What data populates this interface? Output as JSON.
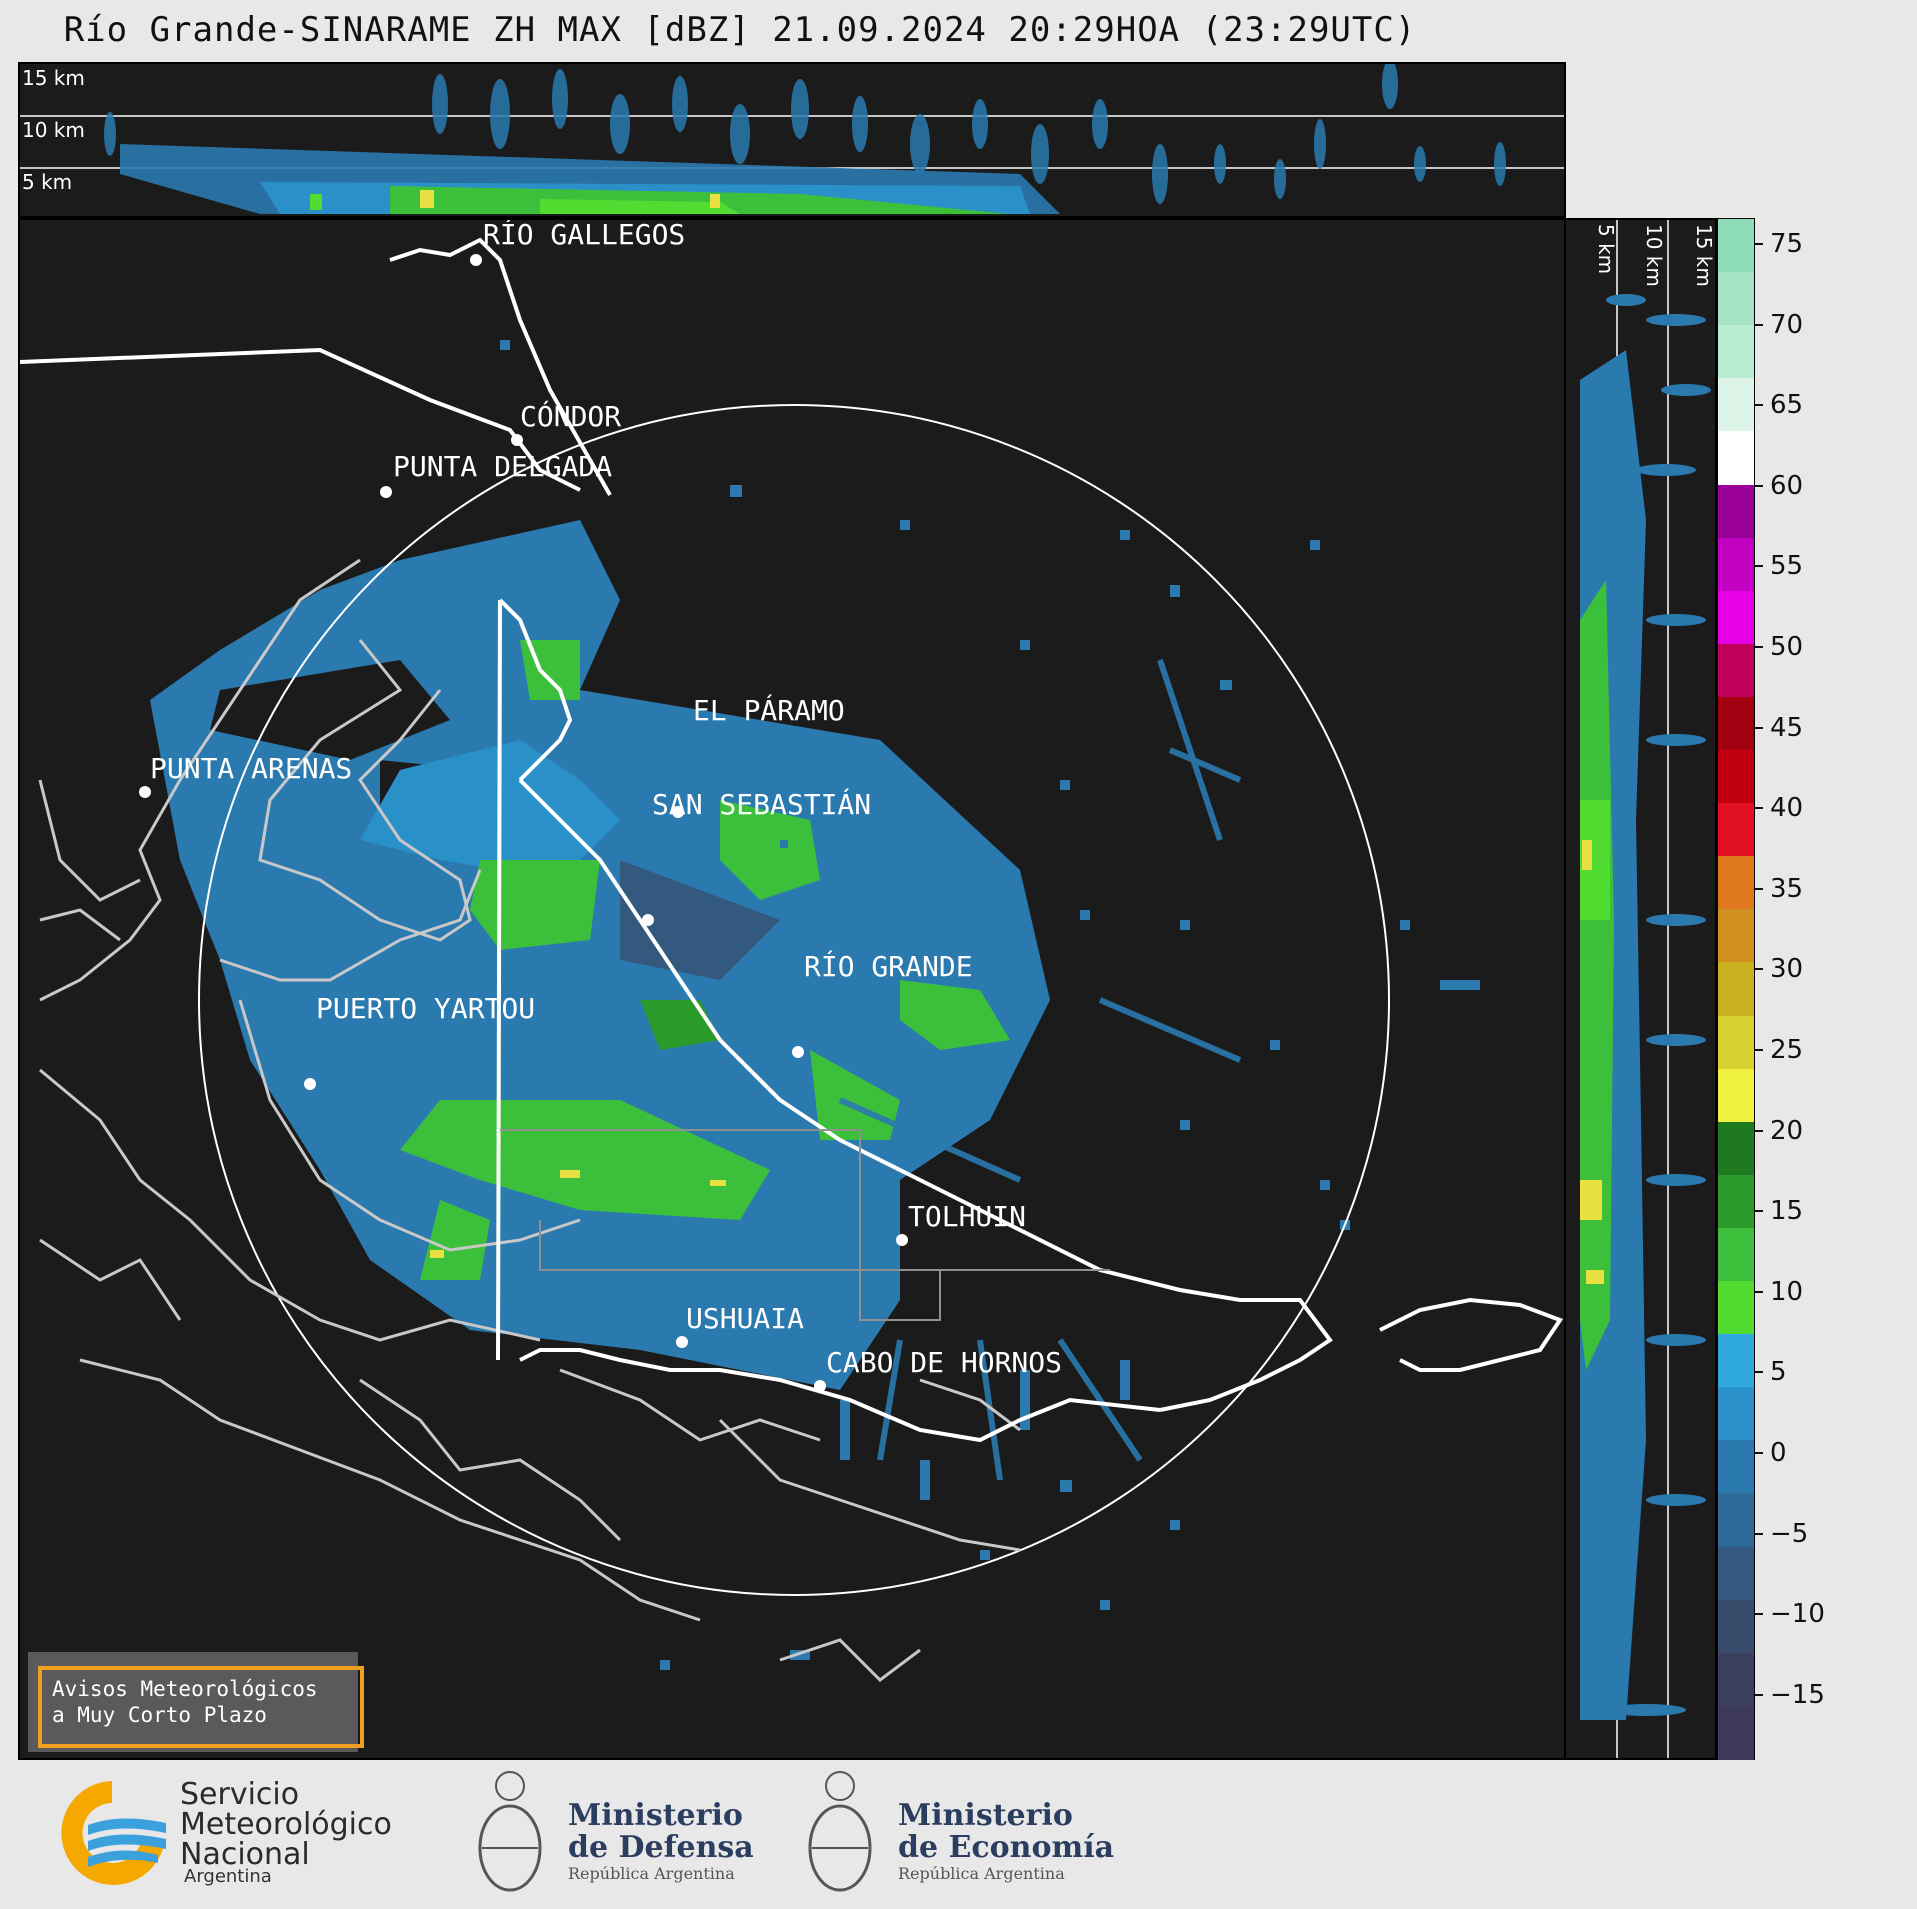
{
  "title": "Río Grande-SINARAME ZH MAX [dBZ] 21.09.2024 20:29HOA (23:29UTC)",
  "top_panel": {
    "heights": [
      "15 km",
      "10 km",
      "5 km"
    ]
  },
  "side_panel": {
    "heights": [
      "5 km",
      "10 km",
      "15 km"
    ]
  },
  "colorbar": {
    "unit": "dBZ",
    "ticks": [
      "75",
      "70",
      "65",
      "60",
      "55",
      "50",
      "45",
      "40",
      "35",
      "30",
      "25",
      "20",
      "15",
      "10",
      "5",
      "0",
      "−5",
      "−10",
      "−15"
    ],
    "colors": [
      "#8fdcb8",
      "#a4e4c4",
      "#b8ecd0",
      "#ddf4e8",
      "#ffffff",
      "#9b009b",
      "#c200c2",
      "#e600e6",
      "#c0005a",
      "#a00010",
      "#c00010",
      "#e01020",
      "#e07820",
      "#d09020",
      "#c8b020",
      "#d8d030",
      "#f0f040",
      "#1f7a1f",
      "#2a9a2a",
      "#3cc03c",
      "#50dc30",
      "#30a8e0",
      "#2a90c8",
      "#2a7ab0",
      "#2e6a98",
      "#33597f",
      "#384a6a",
      "#3a3f5c",
      "#3c3a58"
    ]
  },
  "places": [
    {
      "name": "RÍO GALLEGOS",
      "xy": ""
    },
    {
      "name": "CÓNDOR"
    },
    {
      "name": "PUNTA DELGADA"
    },
    {
      "name": "EL PÁRAMO"
    },
    {
      "name": "PUNTA ARENAS"
    },
    {
      "name": "SAN SEBASTIÁN"
    },
    {
      "name": "RÍO GRANDE"
    },
    {
      "name": "PUERTO YARTOU"
    },
    {
      "name": "TOLHUIN"
    },
    {
      "name": "USHUAIA"
    },
    {
      "name": "CABO DE HORNOS"
    }
  ],
  "aviso": {
    "line1": "Avisos Meteorológicos",
    "line2": "a Muy Corto Plazo"
  },
  "logos": {
    "smn": {
      "line1": "Servicio",
      "line2": "Meteorológico",
      "line3": "Nacional",
      "sub": "Argentina"
    },
    "defensa": {
      "line1": "Ministerio",
      "line2": "de Defensa",
      "sub": "República Argentina"
    },
    "economia": {
      "line1": "Ministerio",
      "line2": "de Economía",
      "sub": "República Argentina"
    }
  }
}
